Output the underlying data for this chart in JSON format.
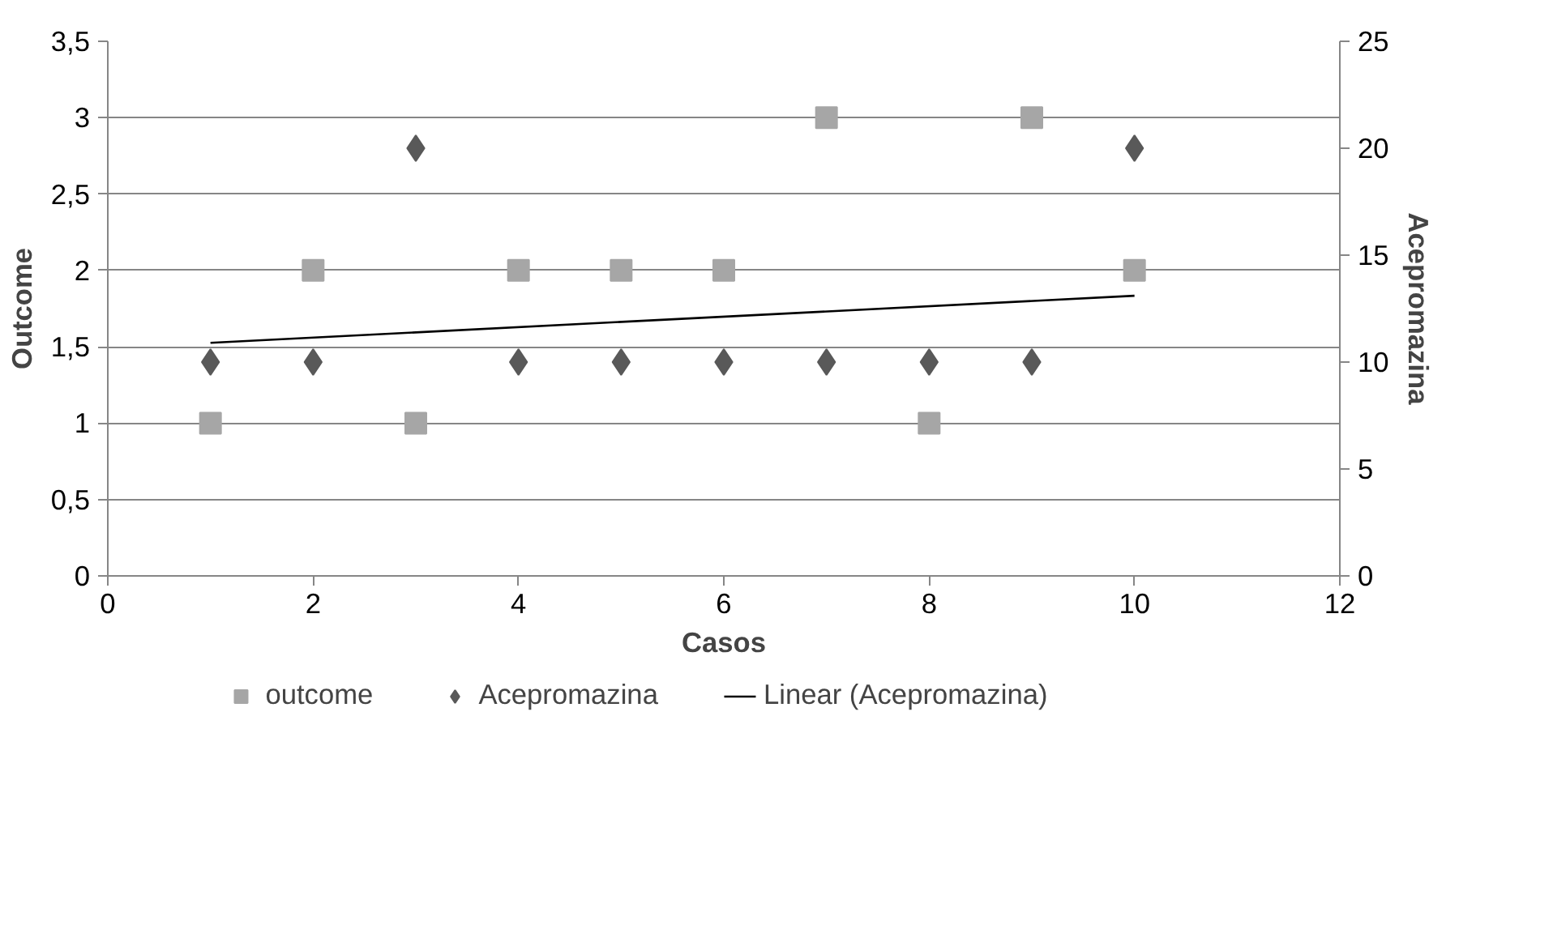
{
  "chart_data": {
    "type": "scatter",
    "xlabel": "Casos",
    "ylabel": "Outcome",
    "y2label": "Acepromazina",
    "x": [
      1,
      2,
      3,
      4,
      5,
      6,
      7,
      8,
      9,
      10
    ],
    "series": [
      {
        "name": "outcome",
        "color": "#a6a6a6",
        "marker": "square",
        "values": [
          1,
          2,
          1,
          2,
          2,
          2,
          3,
          1,
          3,
          2
        ]
      },
      {
        "name": "Acepromazina",
        "color": "#595959",
        "marker": "diamond",
        "axis": "y2",
        "values": [
          10,
          10,
          20,
          10,
          10,
          10,
          10,
          10,
          10,
          20
        ]
      },
      {
        "name": "Linear (Acepromazina)",
        "type": "line",
        "color": "#000000",
        "axis": "y2",
        "marker": "none",
        "x": [
          1,
          10
        ],
        "values": [
          10.9,
          13.1
        ]
      }
    ],
    "xlim": [
      0,
      12
    ],
    "xticks": [
      0,
      2,
      4,
      6,
      8,
      10,
      12
    ],
    "ylim": [
      0,
      3.5
    ],
    "yticks": [
      0,
      {
        "value": 0.5,
        "label": "0,5"
      },
      1,
      {
        "value": 1.5,
        "label": "1,5"
      },
      2,
      {
        "value": 2.5,
        "label": "2,5"
      },
      3,
      {
        "value": 3.5,
        "label": "3,5"
      }
    ],
    "y2lim": [
      0,
      25
    ],
    "y2ticks": [
      0,
      5,
      10,
      15,
      20,
      25
    ],
    "grid": "y",
    "legend": "bottom"
  }
}
